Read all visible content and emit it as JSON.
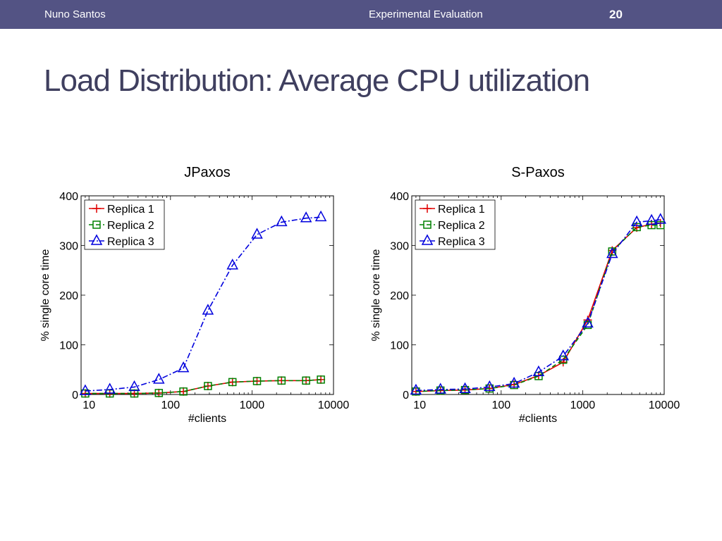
{
  "header": {
    "author": "Nuno Santos",
    "section": "Experimental Evaluation",
    "page": "20"
  },
  "slide": {
    "title": "Load Distribution: Average CPU utilization"
  },
  "colors": {
    "header_bg": "#535384",
    "title": "#3f3f5f",
    "replica1": "#e00000",
    "replica2": "#008000",
    "replica3": "#0000dd"
  },
  "chart_data": [
    {
      "type": "line",
      "title": "JPaxos",
      "xlabel": "#clients",
      "ylabel": "% single core time",
      "xscale": "log",
      "xlim": [
        8,
        10000
      ],
      "ylim": [
        0,
        400
      ],
      "xticks": [
        10,
        100,
        1000,
        10000
      ],
      "yticks": [
        0,
        100,
        200,
        300,
        400
      ],
      "grid": false,
      "legend": "top-left",
      "x": [
        9,
        18,
        36,
        72,
        144,
        288,
        576,
        1152,
        2304,
        4608,
        7000
      ],
      "series": [
        {
          "name": "Replica 1",
          "marker": "plus",
          "dash": "solid",
          "color": "#e00000",
          "values": [
            2,
            2,
            2,
            3,
            6,
            17,
            25,
            27,
            28,
            28,
            30
          ]
        },
        {
          "name": "Replica 2",
          "marker": "square",
          "dash": "dashed",
          "color": "#008000",
          "values": [
            2,
            2,
            2,
            3,
            6,
            17,
            25,
            27,
            28,
            28,
            30
          ]
        },
        {
          "name": "Replica 3",
          "marker": "triangle",
          "dash": "dashdot",
          "color": "#0000dd",
          "values": [
            7,
            10,
            15,
            30,
            53,
            169,
            260,
            322,
            347,
            355,
            357
          ]
        }
      ]
    },
    {
      "type": "line",
      "title": "S-Paxos",
      "xlabel": "#clients",
      "ylabel": "% single core time",
      "xscale": "log",
      "xlim": [
        8,
        10000
      ],
      "ylim": [
        0,
        400
      ],
      "xticks": [
        10,
        100,
        1000,
        10000
      ],
      "yticks": [
        0,
        100,
        200,
        300,
        400
      ],
      "grid": false,
      "legend": "top-left",
      "x": [
        9,
        18,
        36,
        72,
        144,
        288,
        576,
        1152,
        2304,
        4608,
        7000,
        9000
      ],
      "series": [
        {
          "name": "Replica 1",
          "marker": "plus",
          "dash": "solid",
          "color": "#e00000",
          "values": [
            6,
            8,
            9,
            12,
            20,
            38,
            65,
            150,
            290,
            336,
            343,
            345
          ]
        },
        {
          "name": "Replica 2",
          "marker": "square",
          "dash": "dashed",
          "color": "#008000",
          "values": [
            6,
            8,
            9,
            12,
            19,
            37,
            70,
            140,
            288,
            337,
            341,
            341
          ]
        },
        {
          "name": "Replica 3",
          "marker": "triangle",
          "dash": "dashdot",
          "color": "#0000dd",
          "values": [
            8,
            10,
            11,
            15,
            22,
            45,
            77,
            143,
            283,
            347,
            350,
            352
          ]
        }
      ]
    }
  ]
}
